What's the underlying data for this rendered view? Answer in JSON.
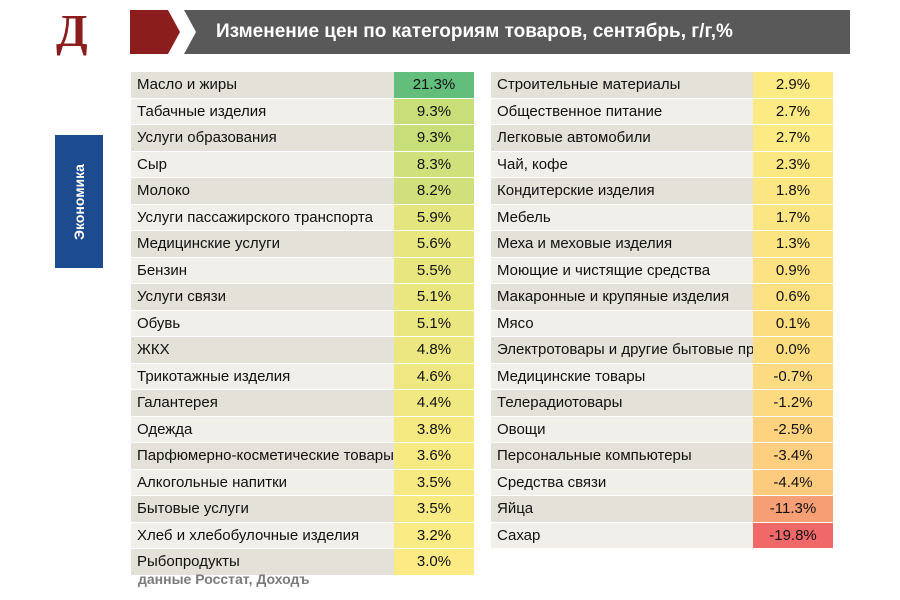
{
  "logo": "Д",
  "title": "Изменение цен по категориям товаров, сентябрь, г/г,%",
  "side_tab": "Экономика",
  "source": "данные Росстат, Доходъ",
  "colors": {
    "brand": "#8c1d1d",
    "title_bar": "#595959",
    "side_tab": "#1d4b8f"
  },
  "chart_data": {
    "type": "table",
    "title": "Изменение цен по категориям товаров, сентябрь, г/г,%",
    "left": [
      {
        "label": "Масло и жиры",
        "value": 21.3,
        "display": "21.3%"
      },
      {
        "label": "Табачные изделия",
        "value": 9.3,
        "display": "9.3%"
      },
      {
        "label": "Услуги образования",
        "value": 9.3,
        "display": "9.3%"
      },
      {
        "label": "Сыр",
        "value": 8.3,
        "display": "8.3%"
      },
      {
        "label": "Молоко",
        "value": 8.2,
        "display": "8.2%"
      },
      {
        "label": "Услуги пассажирского транспорта",
        "value": 5.9,
        "display": "5.9%"
      },
      {
        "label": "Медицинские услуги",
        "value": 5.6,
        "display": "5.6%"
      },
      {
        "label": "Бензин",
        "value": 5.5,
        "display": "5.5%"
      },
      {
        "label": "Услуги связи",
        "value": 5.1,
        "display": "5.1%"
      },
      {
        "label": "Обувь",
        "value": 5.1,
        "display": "5.1%"
      },
      {
        "label": "ЖКХ",
        "value": 4.8,
        "display": "4.8%"
      },
      {
        "label": "Трикотажные изделия",
        "value": 4.6,
        "display": "4.6%"
      },
      {
        "label": "Галантерея",
        "value": 4.4,
        "display": "4.4%"
      },
      {
        "label": "Одежда",
        "value": 3.8,
        "display": "3.8%"
      },
      {
        "label": "Парфюмерно-косметические товары",
        "value": 3.6,
        "display": "3.6%"
      },
      {
        "label": "Алкогольные напитки",
        "value": 3.5,
        "display": "3.5%"
      },
      {
        "label": "Бытовые услуги",
        "value": 3.5,
        "display": "3.5%"
      },
      {
        "label": "Хлеб и хлебобулочные изделия",
        "value": 3.2,
        "display": "3.2%"
      },
      {
        "label": "Рыбопродукты",
        "value": 3.0,
        "display": "3.0%"
      }
    ],
    "right": [
      {
        "label": "Строительные материалы",
        "value": 2.9,
        "display": "2.9%"
      },
      {
        "label": "Общественное питание",
        "value": 2.7,
        "display": "2.7%"
      },
      {
        "label": "Легковые автомобили",
        "value": 2.7,
        "display": "2.7%"
      },
      {
        "label": "Чай, кофе",
        "value": 2.3,
        "display": "2.3%"
      },
      {
        "label": "Кондитерские изделия",
        "value": 1.8,
        "display": "1.8%"
      },
      {
        "label": "Мебель",
        "value": 1.7,
        "display": "1.7%"
      },
      {
        "label": "Меха и меховые изделия",
        "value": 1.3,
        "display": "1.3%"
      },
      {
        "label": "Моющие и чистящие средства",
        "value": 0.9,
        "display": "0.9%"
      },
      {
        "label": "Макаронные и крупяные изделия",
        "value": 0.6,
        "display": "0.6%"
      },
      {
        "label": "Мясо",
        "value": 0.1,
        "display": "0.1%"
      },
      {
        "label": "Электротовары и другие бытовые приборы",
        "value": 0.0,
        "display": "0.0%"
      },
      {
        "label": "Медицинские товары",
        "value": -0.7,
        "display": "-0.7%"
      },
      {
        "label": "Телерадиотовары",
        "value": -1.2,
        "display": "-1.2%"
      },
      {
        "label": "Овощи",
        "value": -2.5,
        "display": "-2.5%"
      },
      {
        "label": "Персональные компьютеры",
        "value": -3.4,
        "display": "-3.4%"
      },
      {
        "label": "Средства связи",
        "value": -4.4,
        "display": "-4.4%"
      },
      {
        "label": "Яйца",
        "value": -11.3,
        "display": "-11.3%"
      },
      {
        "label": "Сахар",
        "value": -19.8,
        "display": "-19.8%"
      }
    ]
  }
}
